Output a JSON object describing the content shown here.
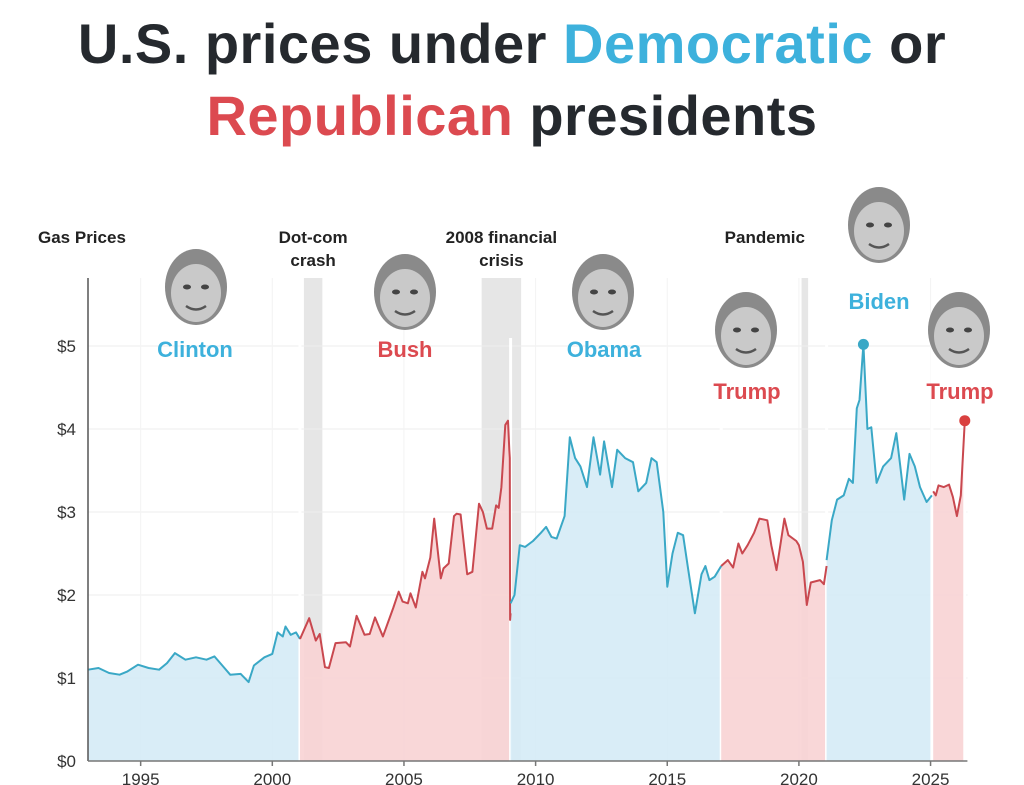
{
  "title": {
    "line1_prefix": "U.S. prices under ",
    "line1_dem": "Democratic",
    "line1_suffix": " or",
    "line2_rep": "Republican",
    "line2_suffix": " presidents"
  },
  "colors": {
    "democratic": "#3db1dc",
    "republican": "#dc4a50",
    "dem_line": "#3aa8c6",
    "rep_line": "#c9484f",
    "dem_fill": "#d5ebf6",
    "rep_fill": "#f8d3d4",
    "recession": "#e6e6e6"
  },
  "chart_data": {
    "type": "area",
    "title": "",
    "ylabel": "Gas Prices",
    "xlim": [
      1993,
      2026.4
    ],
    "ylim": [
      0,
      5.8
    ],
    "grid": true,
    "x_ticks": [
      1995,
      2000,
      2005,
      2010,
      2015,
      2020,
      2025
    ],
    "x_tick_labels": [
      "1995",
      "2000",
      "2005",
      "2010",
      "2015",
      "2020",
      "2025"
    ],
    "y_ticks": [
      0,
      1,
      2,
      3,
      4,
      5
    ],
    "y_tick_labels": [
      "$0",
      "$1",
      "$2",
      "$3",
      "$4",
      "$5"
    ],
    "events": [
      {
        "label": [
          "Dot-com",
          "crash"
        ],
        "start": 2001.2,
        "end": 2001.9
      },
      {
        "label": [
          "2008 financial",
          "crisis"
        ],
        "start": 2007.95,
        "end": 2009.45
      },
      {
        "label": [
          "Pandemic"
        ],
        "start": 2020.1,
        "end": 2020.35
      }
    ],
    "series": [
      {
        "name": "Clinton",
        "party": "democratic",
        "start": 1993,
        "end": 2001.05,
        "points": [
          [
            1993,
            1.1
          ],
          [
            1993.4,
            1.12
          ],
          [
            1993.8,
            1.06
          ],
          [
            1994.2,
            1.04
          ],
          [
            1994.5,
            1.08
          ],
          [
            1994.9,
            1.16
          ],
          [
            1995.3,
            1.12
          ],
          [
            1995.7,
            1.1
          ],
          [
            1996.0,
            1.18
          ],
          [
            1996.3,
            1.3
          ],
          [
            1996.7,
            1.22
          ],
          [
            1997.1,
            1.25
          ],
          [
            1997.5,
            1.22
          ],
          [
            1997.8,
            1.26
          ],
          [
            1998.1,
            1.15
          ],
          [
            1998.4,
            1.04
          ],
          [
            1998.8,
            1.05
          ],
          [
            1999.1,
            0.95
          ],
          [
            1999.3,
            1.15
          ],
          [
            1999.7,
            1.25
          ],
          [
            2000.0,
            1.29
          ],
          [
            2000.2,
            1.55
          ],
          [
            2000.4,
            1.5
          ],
          [
            2000.5,
            1.62
          ],
          [
            2000.7,
            1.52
          ],
          [
            2000.9,
            1.55
          ],
          [
            2001.05,
            1.47
          ]
        ]
      },
      {
        "name": "Bush",
        "party": "republican",
        "start": 2001.05,
        "end": 2009.05,
        "points": [
          [
            2001.05,
            1.47
          ],
          [
            2001.4,
            1.72
          ],
          [
            2001.65,
            1.45
          ],
          [
            2001.8,
            1.53
          ],
          [
            2002.0,
            1.13
          ],
          [
            2002.15,
            1.12
          ],
          [
            2002.4,
            1.42
          ],
          [
            2002.8,
            1.43
          ],
          [
            2002.95,
            1.38
          ],
          [
            2003.2,
            1.75
          ],
          [
            2003.5,
            1.52
          ],
          [
            2003.7,
            1.53
          ],
          [
            2003.9,
            1.73
          ],
          [
            2004.2,
            1.5
          ],
          [
            2004.6,
            1.85
          ],
          [
            2004.8,
            2.04
          ],
          [
            2004.95,
            1.92
          ],
          [
            2005.15,
            1.9
          ],
          [
            2005.25,
            2.02
          ],
          [
            2005.45,
            1.85
          ],
          [
            2005.7,
            2.28
          ],
          [
            2005.8,
            2.2
          ],
          [
            2006.0,
            2.45
          ],
          [
            2006.15,
            2.92
          ],
          [
            2006.4,
            2.2
          ],
          [
            2006.5,
            2.32
          ],
          [
            2006.7,
            2.38
          ],
          [
            2006.9,
            2.95
          ],
          [
            2007.0,
            2.98
          ],
          [
            2007.15,
            2.97
          ],
          [
            2007.4,
            2.25
          ],
          [
            2007.6,
            2.28
          ],
          [
            2007.85,
            3.1
          ],
          [
            2008.0,
            3.0
          ],
          [
            2008.15,
            2.8
          ],
          [
            2008.35,
            2.8
          ],
          [
            2008.5,
            3.08
          ],
          [
            2008.6,
            3.05
          ],
          [
            2008.7,
            3.3
          ],
          [
            2008.85,
            4.05
          ],
          [
            2008.95,
            4.1
          ],
          [
            2009.0,
            3.75
          ],
          [
            2009.02,
            3.65
          ],
          [
            2009.03,
            1.7
          ],
          [
            2009.05,
            1.78
          ]
        ]
      },
      {
        "name": "Obama",
        "party": "democratic",
        "start": 2009.05,
        "end": 2017.05,
        "points": [
          [
            2009.05,
            1.9
          ],
          [
            2009.2,
            2.0
          ],
          [
            2009.4,
            2.6
          ],
          [
            2009.6,
            2.58
          ],
          [
            2009.9,
            2.65
          ],
          [
            2010.2,
            2.75
          ],
          [
            2010.4,
            2.82
          ],
          [
            2010.6,
            2.7
          ],
          [
            2010.8,
            2.68
          ],
          [
            2011.1,
            2.95
          ],
          [
            2011.3,
            3.9
          ],
          [
            2011.5,
            3.65
          ],
          [
            2011.7,
            3.55
          ],
          [
            2011.95,
            3.3
          ],
          [
            2012.2,
            3.9
          ],
          [
            2012.45,
            3.45
          ],
          [
            2012.6,
            3.85
          ],
          [
            2012.9,
            3.3
          ],
          [
            2013.1,
            3.75
          ],
          [
            2013.4,
            3.65
          ],
          [
            2013.7,
            3.6
          ],
          [
            2013.9,
            3.25
          ],
          [
            2014.2,
            3.35
          ],
          [
            2014.4,
            3.65
          ],
          [
            2014.6,
            3.6
          ],
          [
            2014.85,
            3.0
          ],
          [
            2015.0,
            2.1
          ],
          [
            2015.2,
            2.5
          ],
          [
            2015.4,
            2.75
          ],
          [
            2015.6,
            2.72
          ],
          [
            2015.8,
            2.3
          ],
          [
            2016.05,
            1.78
          ],
          [
            2016.3,
            2.25
          ],
          [
            2016.45,
            2.35
          ],
          [
            2016.6,
            2.18
          ],
          [
            2016.8,
            2.22
          ],
          [
            2017.05,
            2.35
          ]
        ]
      },
      {
        "name": "Trump",
        "party": "republican",
        "start": 2017.05,
        "end": 2021.05,
        "points": [
          [
            2017.05,
            2.35
          ],
          [
            2017.3,
            2.42
          ],
          [
            2017.5,
            2.33
          ],
          [
            2017.7,
            2.62
          ],
          [
            2017.85,
            2.5
          ],
          [
            2018.05,
            2.6
          ],
          [
            2018.3,
            2.75
          ],
          [
            2018.5,
            2.92
          ],
          [
            2018.8,
            2.9
          ],
          [
            2018.95,
            2.6
          ],
          [
            2019.15,
            2.3
          ],
          [
            2019.45,
            2.92
          ],
          [
            2019.6,
            2.72
          ],
          [
            2019.9,
            2.65
          ],
          [
            2020.0,
            2.6
          ],
          [
            2020.15,
            2.4
          ],
          [
            2020.3,
            1.88
          ],
          [
            2020.45,
            2.15
          ],
          [
            2020.8,
            2.18
          ],
          [
            2020.95,
            2.13
          ],
          [
            2021.05,
            2.35
          ]
        ]
      },
      {
        "name": "Biden",
        "party": "democratic",
        "start": 2021.05,
        "end": 2025.05,
        "points": [
          [
            2021.05,
            2.42
          ],
          [
            2021.25,
            2.9
          ],
          [
            2021.45,
            3.15
          ],
          [
            2021.7,
            3.2
          ],
          [
            2021.9,
            3.4
          ],
          [
            2022.05,
            3.35
          ],
          [
            2022.2,
            4.25
          ],
          [
            2022.3,
            4.35
          ],
          [
            2022.45,
            5.02
          ],
          [
            2022.6,
            4.0
          ],
          [
            2022.75,
            4.02
          ],
          [
            2022.95,
            3.35
          ],
          [
            2023.2,
            3.55
          ],
          [
            2023.5,
            3.65
          ],
          [
            2023.7,
            3.95
          ],
          [
            2023.85,
            3.55
          ],
          [
            2024.0,
            3.15
          ],
          [
            2024.2,
            3.7
          ],
          [
            2024.4,
            3.55
          ],
          [
            2024.6,
            3.3
          ],
          [
            2024.85,
            3.12
          ],
          [
            2025.05,
            3.2
          ]
        ]
      },
      {
        "name": "Trump",
        "party": "republican",
        "start": 2025.1,
        "end": 2026.3,
        "points": [
          [
            2025.1,
            3.25
          ],
          [
            2025.2,
            3.2
          ],
          [
            2025.3,
            3.32
          ],
          [
            2025.5,
            3.3
          ],
          [
            2025.7,
            3.33
          ],
          [
            2025.85,
            3.18
          ],
          [
            2026.0,
            2.95
          ],
          [
            2026.15,
            3.2
          ],
          [
            2026.3,
            4.1
          ]
        ]
      }
    ],
    "markers": [
      {
        "party": "democratic",
        "x": 2022.45,
        "y": 5.02
      },
      {
        "party": "republican",
        "x": 2026.3,
        "y": 4.1
      }
    ]
  }
}
